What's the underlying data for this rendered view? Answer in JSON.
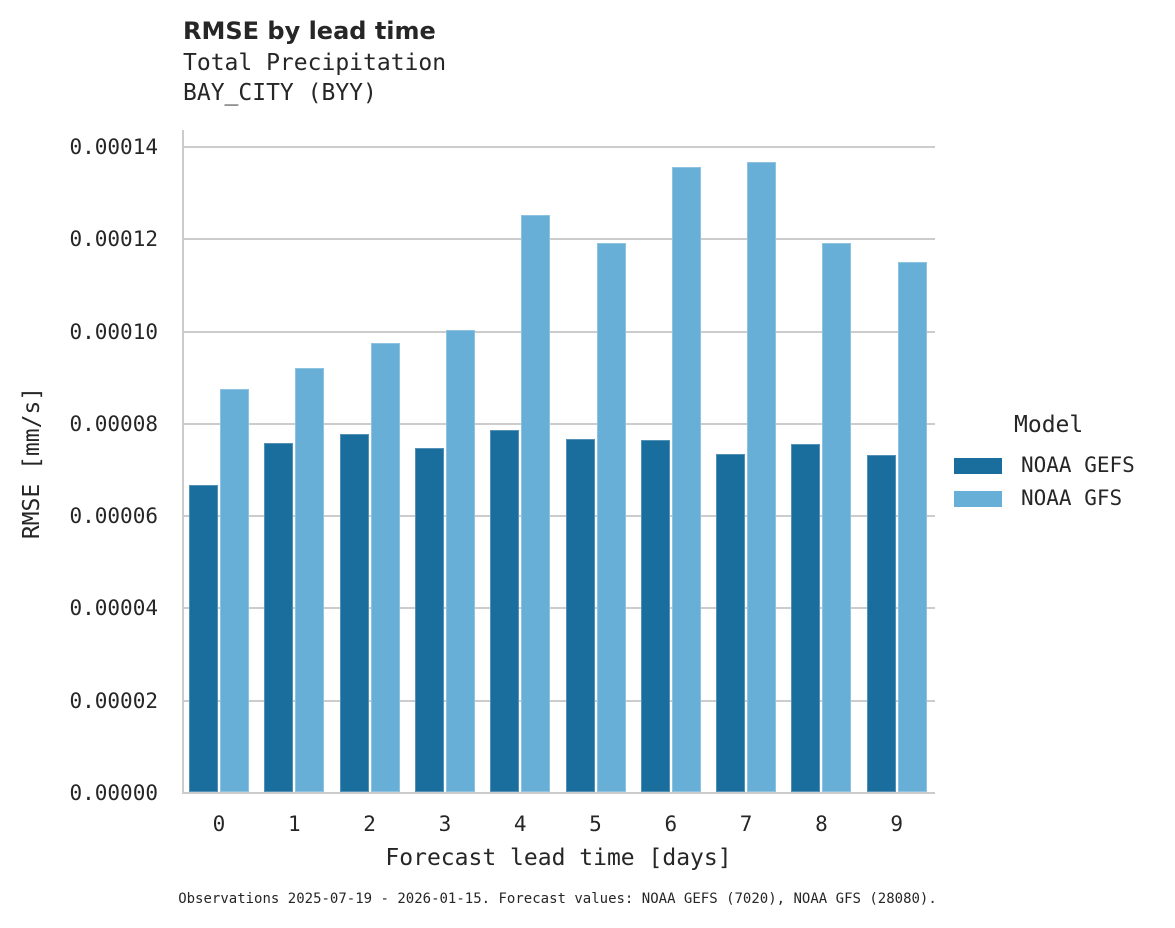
{
  "title": "RMSE by lead time",
  "subtitle_line1": "Total Precipitation",
  "subtitle_line2": "BAY_CITY (BYY)",
  "xlabel": "Forecast lead time [days]",
  "ylabel": "RMSE [mm/s]",
  "legend": {
    "title": "Model",
    "items": [
      {
        "label": "NOAA GEFS",
        "color": "#1a6e9e"
      },
      {
        "label": "NOAA GFS",
        "color": "#67afd7"
      }
    ]
  },
  "yticks": [
    "0.00000",
    "0.00002",
    "0.00004",
    "0.00006",
    "0.00008",
    "0.00010",
    "0.00012",
    "0.00014"
  ],
  "xticks": [
    "0",
    "1",
    "2",
    "3",
    "4",
    "5",
    "6",
    "7",
    "8",
    "9"
  ],
  "footnote": "Observations 2025-07-19 - 2026-01-15. Forecast values: NOAA GEFS (7020), NOAA GFS (28080).",
  "chart_data": {
    "type": "bar",
    "title": "RMSE by lead time",
    "subtitle": "Total Precipitation / BAY_CITY (BYY)",
    "xlabel": "Forecast lead time [days]",
    "ylabel": "RMSE [mm/s]",
    "categories": [
      "0",
      "1",
      "2",
      "3",
      "4",
      "5",
      "6",
      "7",
      "8",
      "9"
    ],
    "series": [
      {
        "name": "NOAA GEFS",
        "color": "#1a6e9e",
        "values": [
          6.65e-05,
          7.56e-05,
          7.76e-05,
          7.45e-05,
          7.84e-05,
          7.65e-05,
          7.63e-05,
          7.32e-05,
          7.54e-05,
          7.3e-05
        ]
      },
      {
        "name": "NOAA GFS",
        "color": "#67afd7",
        "values": [
          8.73e-05,
          9.19e-05,
          9.73e-05,
          0.0001001,
          0.000125,
          0.000119,
          0.0001354,
          0.0001365,
          0.000119,
          0.0001148
        ]
      }
    ],
    "ylim": [
      0,
      0.000143
    ],
    "yticks": [
      0,
      2e-05,
      4e-05,
      6e-05,
      8e-05,
      0.0001,
      0.00012,
      0.00014
    ],
    "grid": "horizontal",
    "legend_position": "right",
    "legend_title": "Model",
    "footnote": "Observations 2025-07-19 - 2026-01-15. Forecast values: NOAA GEFS (7020), NOAA GFS (28080)."
  }
}
